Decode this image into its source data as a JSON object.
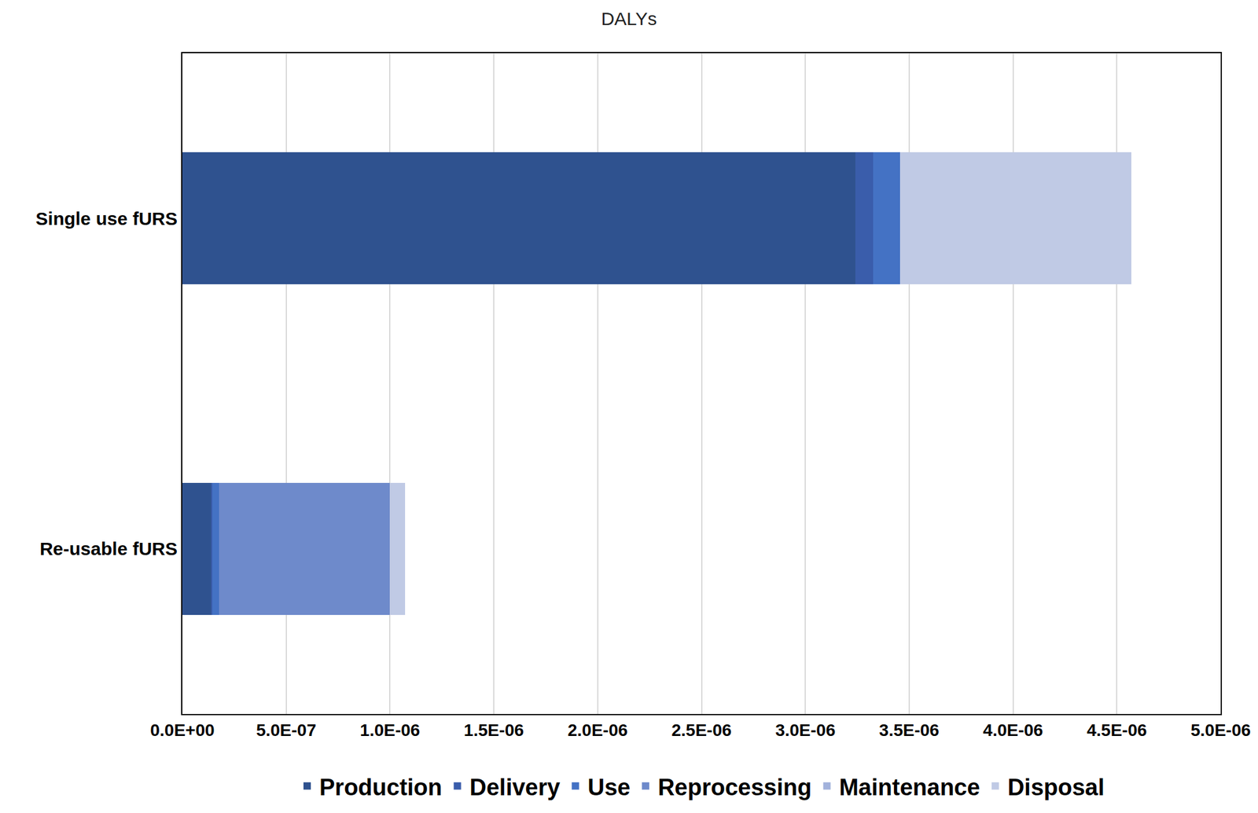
{
  "chart_data": {
    "type": "bar",
    "title": "DALYs",
    "orientation": "horizontal",
    "stacked": true,
    "grid": true,
    "legend": "bottom",
    "categories": [
      "Single use fURS",
      "Re-usable fURS"
    ],
    "series": [
      {
        "name": "Production",
        "color": "#2f528f",
        "values": [
          3.24e-06,
          1.39e-07
        ]
      },
      {
        "name": "Delivery",
        "color": "#3a5dab",
        "values": [
          8.5e-08,
          4e-09
        ]
      },
      {
        "name": "Use",
        "color": "#4472c4",
        "values": [
          1.31e-07,
          3.4e-08
        ]
      },
      {
        "name": "Reprocessing",
        "color": "#6e8acb",
        "values": [
          0,
          8.21e-07
        ]
      },
      {
        "name": "Maintenance",
        "color": "#a2b2dc",
        "values": [
          0,
          0
        ]
      },
      {
        "name": "Disposal",
        "color": "#c0cae5",
        "values": [
          1.114e-06,
          7.4e-08
        ]
      }
    ],
    "xlim": [
      0,
      5e-06
    ],
    "xticks": [
      {
        "value": 0,
        "label": "0.0E+00"
      },
      {
        "value": 5e-07,
        "label": "5.0E-07"
      },
      {
        "value": 1e-06,
        "label": "1.0E-06"
      },
      {
        "value": 1.5e-06,
        "label": "1.5E-06"
      },
      {
        "value": 2e-06,
        "label": "2.0E-06"
      },
      {
        "value": 2.5e-06,
        "label": "2.5E-06"
      },
      {
        "value": 3e-06,
        "label": "3.0E-06"
      },
      {
        "value": 3.5e-06,
        "label": "3.5E-06"
      },
      {
        "value": 4e-06,
        "label": "4.0E-06"
      },
      {
        "value": 4.5e-06,
        "label": "4.5E-06"
      },
      {
        "value": 5e-06,
        "label": "5.0E-06"
      }
    ]
  }
}
